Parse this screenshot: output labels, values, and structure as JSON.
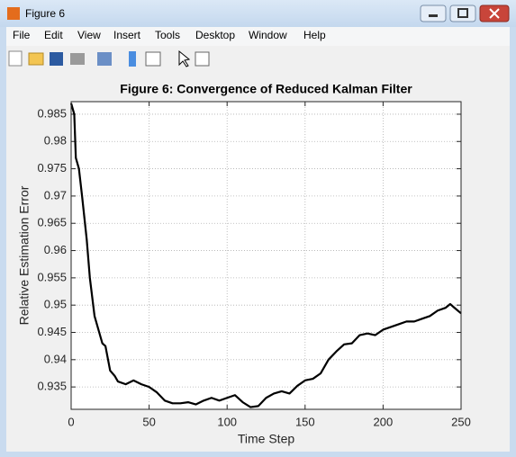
{
  "window": {
    "title": "Figure 6",
    "menu": [
      "File",
      "Edit",
      "View",
      "Insert",
      "Tools",
      "Desktop",
      "Window",
      "Help"
    ]
  },
  "chart_data": {
    "type": "line",
    "title": "Figure 6: Convergence of Reduced Kalman Filter",
    "x_label": "Time Step",
    "y_label": "Relative Estimation Error",
    "x": [
      0,
      2,
      3,
      5,
      7,
      10,
      12,
      15,
      18,
      20,
      22,
      25,
      28,
      30,
      35,
      40,
      45,
      50,
      55,
      60,
      65,
      70,
      75,
      80,
      85,
      90,
      95,
      100,
      105,
      110,
      115,
      120,
      125,
      130,
      135,
      140,
      145,
      150,
      155,
      160,
      165,
      170,
      175,
      180,
      185,
      190,
      195,
      200,
      205,
      210,
      215,
      220,
      225,
      230,
      235,
      240,
      243,
      245,
      250
    ],
    "values": [
      0.987,
      0.985,
      0.977,
      0.975,
      0.97,
      0.962,
      0.955,
      0.948,
      0.945,
      0.943,
      0.9425,
      0.938,
      0.937,
      0.936,
      0.9355,
      0.9362,
      0.9355,
      0.935,
      0.934,
      0.9325,
      0.932,
      0.932,
      0.9322,
      0.9318,
      0.9325,
      0.933,
      0.9325,
      0.933,
      0.9335,
      0.9322,
      0.9313,
      0.9315,
      0.933,
      0.9338,
      0.9342,
      0.9338,
      0.9352,
      0.9362,
      0.9365,
      0.9375,
      0.94,
      0.9415,
      0.9428,
      0.943,
      0.9445,
      0.9448,
      0.9445,
      0.9455,
      0.946,
      0.9465,
      0.947,
      0.947,
      0.9475,
      0.948,
      0.949,
      0.9495,
      0.9502,
      0.9497,
      0.9485
    ],
    "color": "#000000",
    "xlim": [
      0,
      250
    ],
    "xticks": [
      0,
      50,
      100,
      150,
      200,
      250
    ],
    "ylim": [
      0.9309,
      0.9873
    ],
    "yticks": [
      0.935,
      0.94,
      0.945,
      0.95,
      0.955,
      0.96,
      0.965,
      0.97,
      0.975,
      0.98,
      0.985
    ],
    "grid": true
  }
}
